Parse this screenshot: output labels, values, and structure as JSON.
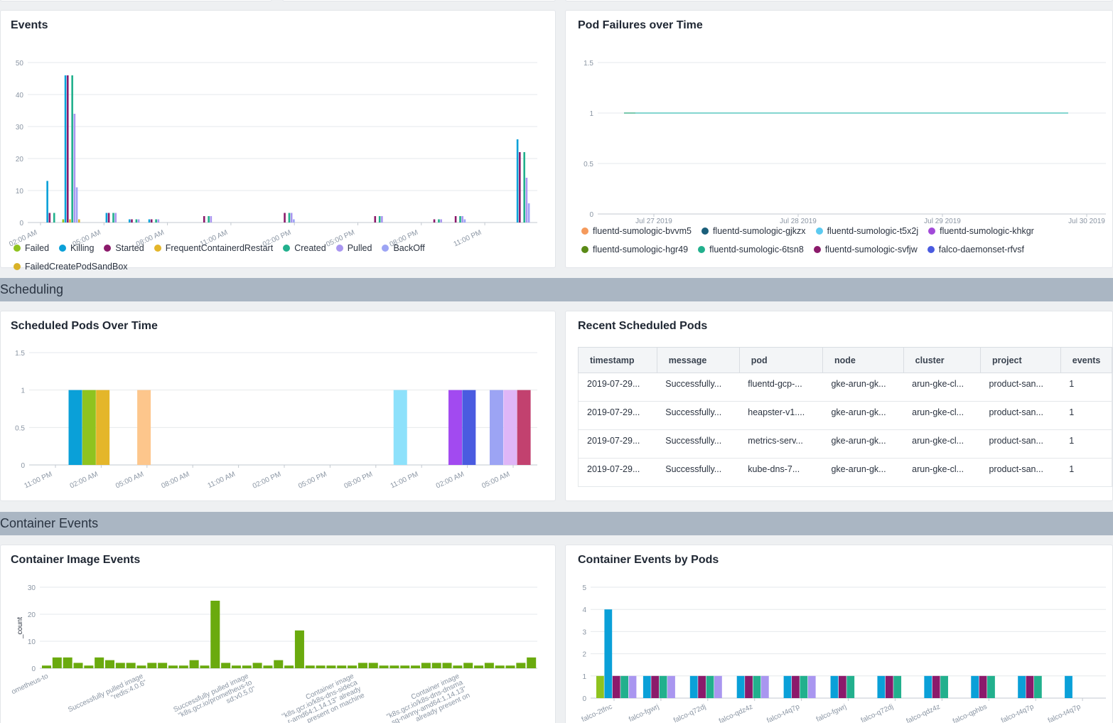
{
  "sections": {
    "scheduling": "Scheduling",
    "container_events": "Container Events"
  },
  "colors": {
    "failed": "#8fc31f",
    "killing": "#0aa0d8",
    "started": "#8b1a6b",
    "frequent": "#e4b62a",
    "created": "#22b08d",
    "pulled": "#a996f0",
    "backoff": "#9ca4f4",
    "sandbox": "#d9b227"
  },
  "events": {
    "title": "Events",
    "legend": [
      {
        "label": "Failed",
        "color": "#8fc31f"
      },
      {
        "label": "Killing",
        "color": "#0aa0d8"
      },
      {
        "label": "Started",
        "color": "#8b1a6b"
      },
      {
        "label": "FrequentContainerdRestart",
        "color": "#e4b62a"
      },
      {
        "label": "Created",
        "color": "#22b08d"
      },
      {
        "label": "Pulled",
        "color": "#a996f0"
      },
      {
        "label": "BackOff",
        "color": "#9ca4f4"
      },
      {
        "label": "FailedCreatePodSandBox",
        "color": "#d9b227"
      }
    ]
  },
  "pod_failures": {
    "title": "Pod Failures over Time",
    "legend": [
      {
        "label": "fluentd-sumologic-bvvm5",
        "color": "#f59a5c"
      },
      {
        "label": "fluentd-sumologic-gjkzx",
        "color": "#1b5f7a"
      },
      {
        "label": "fluentd-sumologic-t5x2j",
        "color": "#5ccaf0"
      },
      {
        "label": "fluentd-sumologic-khkgr",
        "color": "#a24ad8"
      },
      {
        "label": "fluentd-sumologic-hgr49",
        "color": "#5a8a16"
      },
      {
        "label": "fluentd-sumologic-6tsn8",
        "color": "#22b08d"
      },
      {
        "label": "fluentd-sumologic-svfjw",
        "color": "#8b1a6b"
      },
      {
        "label": "falco-daemonset-rfvsf",
        "color": "#4a5be0"
      }
    ]
  },
  "scheduled_pods": {
    "title": "Scheduled Pods Over Time"
  },
  "recent_pods": {
    "title": "Recent Scheduled Pods",
    "columns": [
      "timestamp",
      "message",
      "pod",
      "node",
      "cluster",
      "project",
      "events"
    ],
    "rows": [
      [
        "2019-07-29...",
        "Successfully...",
        "fluentd-gcp-...",
        "gke-arun-gk...",
        "arun-gke-cl...",
        "product-san...",
        "1"
      ],
      [
        "2019-07-29...",
        "Successfully...",
        "heapster-v1....",
        "gke-arun-gk...",
        "arun-gke-cl...",
        "product-san...",
        "1"
      ],
      [
        "2019-07-29...",
        "Successfully...",
        "metrics-serv...",
        "gke-arun-gk...",
        "arun-gke-cl...",
        "product-san...",
        "1"
      ],
      [
        "2019-07-29...",
        "Successfully...",
        "kube-dns-7...",
        "gke-arun-gk...",
        "arun-gke-cl...",
        "product-san...",
        "1"
      ]
    ]
  },
  "container_image": {
    "title": "Container Image Events"
  },
  "container_pods": {
    "title": "Container Events by Pods"
  },
  "chart_data": [
    {
      "id": "events",
      "type": "bar",
      "title": "Events",
      "ylim": [
        0,
        50
      ],
      "yticks": [
        0,
        10,
        20,
        30,
        40,
        50
      ],
      "xtick_labels": [
        "02:00 AM",
        "05:00 AM",
        "08:00 AM",
        "11:00 AM",
        "02:00 PM",
        "05:00 PM",
        "08:00 PM",
        "11:00 PM"
      ],
      "series_names": [
        "Failed",
        "Killing",
        "Started",
        "FrequentContainerdRestart",
        "Created",
        "Pulled",
        "BackOff",
        "FailedCreatePodSandBox"
      ],
      "groups": [
        {
          "t": 1.0,
          "values": [
            0,
            13,
            3,
            0,
            3,
            0,
            0,
            0
          ]
        },
        {
          "t": 2.1,
          "values": [
            1,
            46,
            46,
            1,
            46,
            34,
            11,
            1
          ]
        },
        {
          "t": 4.6,
          "values": [
            0,
            3,
            3,
            0,
            3,
            3,
            0,
            0
          ]
        },
        {
          "t": 6.0,
          "values": [
            0,
            1,
            1,
            0,
            1,
            1,
            0,
            0
          ]
        },
        {
          "t": 7.2,
          "values": [
            0,
            1,
            1,
            0,
            1,
            1,
            0,
            0
          ]
        },
        {
          "t": 10.4,
          "values": [
            0,
            0,
            2,
            0,
            2,
            2,
            0,
            0
          ]
        },
        {
          "t": 15.3,
          "values": [
            0,
            0,
            3,
            0,
            3,
            3,
            1,
            0
          ]
        },
        {
          "t": 20.8,
          "values": [
            0,
            0,
            2,
            0,
            2,
            2,
            0,
            0
          ]
        },
        {
          "t": 24.4,
          "values": [
            0,
            0,
            1,
            0,
            1,
            1,
            0,
            0
          ]
        },
        {
          "t": 25.7,
          "values": [
            0,
            0,
            2,
            0,
            2,
            2,
            1,
            0
          ]
        },
        {
          "t": 29.6,
          "values": [
            0,
            26,
            22,
            0,
            22,
            14,
            6,
            0
          ]
        }
      ]
    },
    {
      "id": "pod_failures",
      "type": "line",
      "title": "Pod Failures over Time",
      "ylim": [
        0,
        1.5
      ],
      "yticks": [
        0,
        0.5,
        1,
        1.5
      ],
      "ytick_labels": [
        "0",
        "0.5",
        "1",
        "1.5"
      ],
      "xtick_labels": [
        "Jul 27 2019",
        "Jul 28 2019",
        "Jul 29 2019",
        "Jul 30 2019"
      ],
      "series": [
        {
          "name": "fluentd-sumologic-hgr49",
          "color": "#a8a01a",
          "from": "Jul 27 2019",
          "to": "Jul 27 2019",
          "value": 1
        },
        {
          "name": "fluentd-sumologic-6tsn8",
          "color": "#5cc8c0",
          "from": "Jul 27 2019",
          "to": "Jul 30 2019",
          "value": 1
        }
      ]
    },
    {
      "id": "scheduled_pods",
      "type": "bar",
      "title": "Scheduled Pods Over Time",
      "ylim": [
        0,
        1.5
      ],
      "yticks": [
        0,
        0.5,
        1,
        1.5
      ],
      "ytick_labels": [
        "0",
        "0.5",
        "1",
        "1.5"
      ],
      "xtick_labels": [
        "11:00 PM",
        "02:00 AM",
        "05:00 AM",
        "08:00 AM",
        "11:00 AM",
        "02:00 PM",
        "05:00 PM",
        "08:00 PM",
        "11:00 PM",
        "02:00 AM",
        "05:00 AM"
      ],
      "bars": [
        {
          "t": 1.5,
          "value": 1,
          "color": "#0aa0d8"
        },
        {
          "t": 1.8,
          "value": 1,
          "color": "#8fc31f"
        },
        {
          "t": 2.1,
          "value": 1,
          "color": "#e4b62a"
        },
        {
          "t": 3.0,
          "value": 1,
          "color": "#fdc68c"
        },
        {
          "t": 8.6,
          "value": 1,
          "color": "#8de1fb"
        },
        {
          "t": 9.8,
          "value": 1,
          "color": "#a24af0"
        },
        {
          "t": 10.1,
          "value": 1,
          "color": "#4a5be0"
        },
        {
          "t": 10.7,
          "value": 1,
          "color": "#9ca4f4"
        },
        {
          "t": 11.0,
          "value": 1,
          "color": "#dfb6f7"
        },
        {
          "t": 11.3,
          "value": 1,
          "color": "#c2416f"
        }
      ]
    },
    {
      "id": "container_image",
      "type": "bar",
      "title": "Container Image Events",
      "ylabel": "_count",
      "ylim": [
        0,
        30
      ],
      "yticks": [
        0,
        10,
        20,
        30
      ],
      "color": "#6aaa0e",
      "values": [
        1,
        4,
        4,
        2,
        1,
        4,
        3,
        2,
        2,
        1,
        2,
        2,
        1,
        1,
        3,
        1,
        25,
        2,
        1,
        1,
        2,
        1,
        3,
        1,
        14,
        1,
        1,
        1,
        1,
        1,
        2,
        2,
        1,
        1,
        1,
        1,
        2,
        2,
        2,
        1,
        2,
        1,
        2,
        1,
        1,
        2,
        4
      ],
      "xtick_labels": [
        {
          "i": 0,
          "lines": [
            "ometheus-to"
          ]
        },
        {
          "i": 9,
          "lines": [
            "Successfully pulled image",
            "\"redis:4.0.6\""
          ]
        },
        {
          "i": 19,
          "lines": [
            "Successfully pulled image",
            "\"k8s.gcr.io/prometheus-to",
            "sd:v0.5.0\""
          ]
        },
        {
          "i": 29,
          "lines": [
            "Container image",
            "\"k8s.gcr.io/k8s-dns-sideca",
            "r-amd64:1.14.13\" already",
            "present on machine"
          ]
        },
        {
          "i": 39,
          "lines": [
            "Container image",
            "\"k8s.gcr.io/k8s-dns-dnsma",
            "sq-nanny-amd64:1.14.13\"",
            "already present on"
          ]
        }
      ]
    },
    {
      "id": "container_pods",
      "type": "bar",
      "title": "Container Events by Pods",
      "ylim": [
        0,
        5
      ],
      "yticks": [
        0,
        1,
        2,
        3,
        4,
        5
      ],
      "categories": [
        "falco-2tfnc",
        "falco-fgwrj",
        "falco-q72dj",
        "falco-qdz4z",
        "falco-t4q7p",
        "falco-fgwrj",
        "falco-q72dj",
        "falco-qdz4z",
        "falco-qphbs",
        "falco-t4q7p",
        "falco-t4q7p"
      ],
      "series_colors": [
        "#8fc31f",
        "#0aa0d8",
        "#8b1a6b",
        "#22b08d",
        "#a996f0"
      ],
      "groups": [
        [
          1,
          4,
          1,
          1,
          1
        ],
        [
          0,
          1,
          1,
          1,
          1
        ],
        [
          0,
          1,
          1,
          1,
          1
        ],
        [
          0,
          1,
          1,
          1,
          1
        ],
        [
          0,
          1,
          1,
          1,
          1
        ],
        [
          0,
          1,
          1,
          1,
          0
        ],
        [
          0,
          1,
          1,
          1,
          0
        ],
        [
          0,
          1,
          1,
          1,
          0
        ],
        [
          0,
          1,
          1,
          1,
          0
        ],
        [
          0,
          1,
          1,
          1,
          0
        ],
        [
          0,
          1,
          0,
          0,
          0
        ]
      ]
    }
  ]
}
